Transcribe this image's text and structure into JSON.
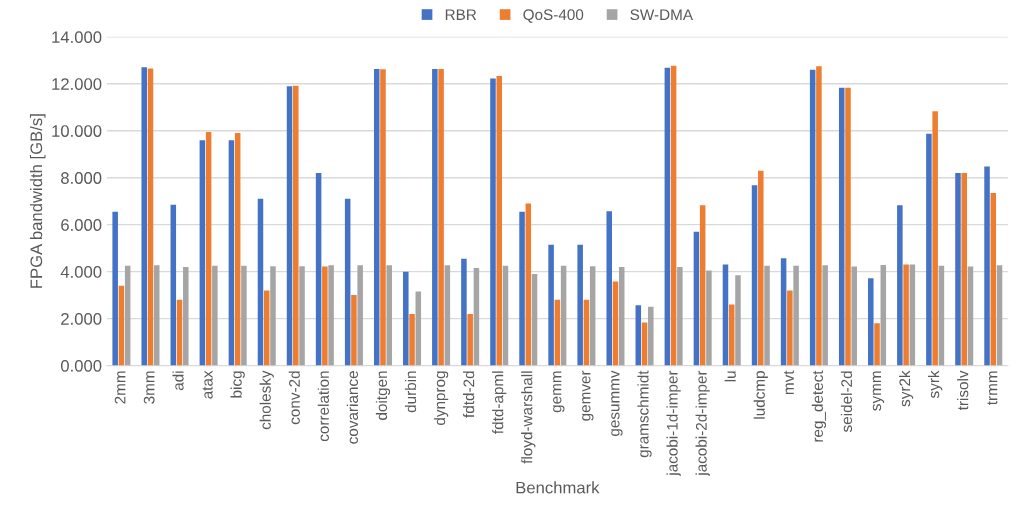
{
  "chart_data": {
    "type": "bar",
    "xlabel": "Benchmark",
    "ylabel": "FPGA bandwidth [GB/s]",
    "categories": [
      "2mm",
      "3mm",
      "adi",
      "atax",
      "bicg",
      "cholesky",
      "conv-2d",
      "correlation",
      "covariance",
      "doitgen",
      "durbin",
      "dynprog",
      "fdtd-2d",
      "fdtd-apml",
      "floyd-warshall",
      "gemm",
      "gemver",
      "gesummv",
      "gramschmidt",
      "jacobi-1d-imper",
      "jacobi-2d-imper",
      "lu",
      "ludcmp",
      "mvt",
      "reg_detect",
      "seidel-2d",
      "symm",
      "syr2k",
      "syrk",
      "trisolv",
      "trmm"
    ],
    "series": [
      {
        "name": "RBR",
        "color": "#4472c4",
        "values": [
          6.55,
          12.7,
          6.85,
          9.6,
          9.6,
          7.1,
          11.9,
          8.2,
          7.1,
          12.63,
          4.0,
          12.63,
          4.55,
          12.23,
          6.55,
          5.15,
          5.15,
          6.57,
          2.57,
          12.68,
          5.7,
          4.3,
          7.68,
          4.57,
          12.6,
          11.83,
          3.72,
          6.83,
          9.87,
          8.2,
          8.48
        ]
      },
      {
        "name": "QoS-400",
        "color": "#ed7d31",
        "values": [
          3.4,
          12.65,
          2.8,
          9.95,
          9.9,
          3.2,
          11.92,
          4.22,
          3.0,
          12.62,
          2.2,
          12.63,
          2.2,
          12.33,
          6.9,
          2.8,
          2.8,
          3.58,
          1.83,
          12.77,
          6.83,
          2.6,
          8.3,
          3.2,
          12.75,
          11.83,
          1.8,
          4.3,
          10.83,
          8.2,
          7.35
        ]
      },
      {
        "name": "SW-DMA",
        "color": "#a5a5a5",
        "values": [
          4.25,
          4.27,
          4.2,
          4.25,
          4.25,
          4.23,
          4.23,
          4.27,
          4.27,
          4.27,
          3.15,
          4.27,
          4.15,
          4.25,
          3.9,
          4.25,
          4.23,
          4.2,
          2.5,
          4.2,
          4.05,
          3.85,
          4.25,
          4.25,
          4.27,
          4.22,
          4.28,
          4.3,
          4.25,
          4.22,
          4.27
        ]
      }
    ],
    "ylim": [
      0,
      14
    ],
    "yticks": [
      {
        "value": 0,
        "label": "0.000"
      },
      {
        "value": 2,
        "label": "2.000"
      },
      {
        "value": 4,
        "label": "4.000"
      },
      {
        "value": 6,
        "label": "6.000"
      },
      {
        "value": 8,
        "label": "8.000"
      },
      {
        "value": 10,
        "label": "10.000"
      },
      {
        "value": 12,
        "label": "12.000"
      },
      {
        "value": 14,
        "label": "14.000"
      }
    ],
    "grid": "y",
    "legend": "top"
  }
}
